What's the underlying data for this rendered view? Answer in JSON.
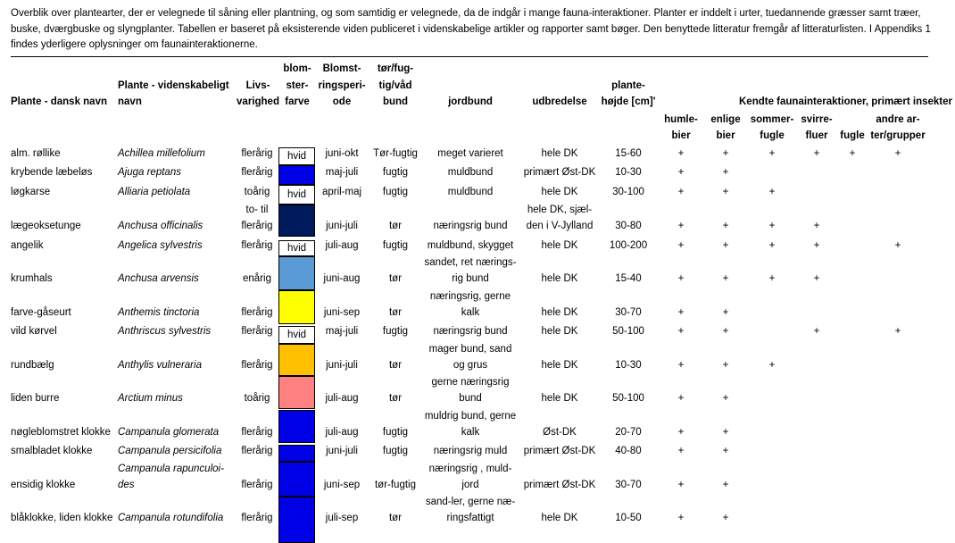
{
  "intro": "Overblik over plantearter, der er velegnede til såning eller plantning, og som samtidig er velegnede, da de indgår i mange fauna-interaktioner. Planter er inddelt i urter, tuedannende græsser samt træer, buske, dværgbuske og slyngplanter. Tabellen er baseret på eksisterende viden publiceret i videnskabelige artikler og rapporter samt bøger. Den benyttede litteratur fremgår af litteraturlisten. I Appendiks 1 findes yderligere oplysninger om faunainteraktionerne.",
  "headers": {
    "dansk": "Plante - dansk navn",
    "latin": [
      "Plante - videnskabeligt",
      "navn"
    ],
    "livs": [
      "Livs-",
      "varighed"
    ],
    "farve": [
      "blom-",
      "ster-",
      "farve"
    ],
    "blomst": [
      "Blomst-",
      "ringsperi-",
      "ode"
    ],
    "bund": [
      "tør/fug-",
      "tig/våd",
      "bund"
    ],
    "jordbund": "jordbund",
    "udbredelse": "udbredelse",
    "hojde": [
      "plante-",
      "højde [cm]'"
    ],
    "kendte": "Kendte faunainteraktioner, primært insekter",
    "fauna": [
      [
        "humle-",
        "bier"
      ],
      [
        "enlige",
        "bier"
      ],
      [
        "sommer-",
        "fugle"
      ],
      [
        "svirre-",
        "fluer"
      ],
      [
        "",
        "fugle"
      ],
      [
        "andre ar-",
        "ter/grupper"
      ]
    ]
  },
  "rows": [
    {
      "dansk": "alm. røllike",
      "latin": [
        "Achillea millefolium"
      ],
      "livs": [
        "flerårig"
      ],
      "color": "#ffffff",
      "colorLabel": "hvid",
      "blomst": "juni-okt",
      "bund": "Tør-fugtig",
      "jord": [
        "meget varieret"
      ],
      "udb": [
        "hele DK"
      ],
      "hojde": "15-60",
      "fauna": [
        "+",
        "+",
        "+",
        "+",
        "+",
        "+"
      ]
    },
    {
      "dansk": "krybende læbeløs",
      "latin": [
        "Ajuga reptans"
      ],
      "livs": [
        "flerårig"
      ],
      "color": "#0000e6",
      "colorLabel": "",
      "blomst": "maj-juli",
      "bund": "fugtig",
      "jord": [
        "muldbund"
      ],
      "udb": [
        "primært Øst-DK"
      ],
      "hojde": "10-30",
      "fauna": [
        "+",
        "+",
        "",
        "",
        "",
        ""
      ]
    },
    {
      "dansk": "løgkarse",
      "latin": [
        "Alliaria petiolata"
      ],
      "livs": [
        "toårig"
      ],
      "color": "#ffffff",
      "colorLabel": "hvid",
      "blomst": "april-maj",
      "bund": "fugtig",
      "jord": [
        "muldbund"
      ],
      "udb": [
        "hele DK"
      ],
      "hojde": "30-100",
      "fauna": [
        "+",
        "+",
        "+",
        "",
        "",
        ""
      ]
    },
    {
      "dansk": "lægeoksetunge",
      "latin": [
        "Anchusa officinalis"
      ],
      "livs": [
        "to- til",
        "flerårig"
      ],
      "color": "#001a5c",
      "colorLabel": "",
      "blomst": "juni-juli",
      "bund": "tør",
      "jord": [
        "næringsrig bund"
      ],
      "udb": [
        "hele DK, sjæl-",
        "den i V-Jylland"
      ],
      "hojde": "30-80",
      "fauna": [
        "+",
        "+",
        "+",
        "+",
        "",
        ""
      ]
    },
    {
      "dansk": "angelik",
      "latin": [
        "Angelica sylvestris"
      ],
      "livs": [
        "flerårig"
      ],
      "color": "#ffffff",
      "colorLabel": "hvid",
      "blomst": "juli-aug",
      "bund": "fugtig",
      "jord": [
        "muldbund, skygget"
      ],
      "udb": [
        "hele DK"
      ],
      "hojde": "100-200",
      "fauna": [
        "+",
        "+",
        "+",
        "+",
        "",
        "+"
      ]
    },
    {
      "dansk": "krumhals",
      "latin": [
        "Anchusa arvensis"
      ],
      "livs": [
        "enårig"
      ],
      "color": "#5b9bd5",
      "colorLabel": "",
      "blomst": "juni-aug",
      "bund": "tør",
      "jord": [
        "sandet, ret nærings-",
        "rig bund"
      ],
      "udb": [
        "hele DK"
      ],
      "hojde": "15-40",
      "fauna": [
        "+",
        "+",
        "+",
        "+",
        "",
        ""
      ]
    },
    {
      "dansk": "farve-gåseurt",
      "latin": [
        "Anthemis tinctoria"
      ],
      "livs": [
        "flerårig"
      ],
      "color": "#ffff00",
      "colorLabel": "",
      "blomst": "juni-sep",
      "bund": "tør",
      "jord": [
        "næringsrig, gerne",
        "kalk"
      ],
      "udb": [
        "hele DK"
      ],
      "hojde": "30-70",
      "fauna": [
        "+",
        "+",
        "",
        "",
        "",
        ""
      ]
    },
    {
      "dansk": "vild kørvel",
      "latin": [
        "Anthriscus sylvestris"
      ],
      "livs": [
        "flerårig"
      ],
      "color": "#ffffff",
      "colorLabel": "hvid",
      "blomst": "maj-juli",
      "bund": "fugtig",
      "jord": [
        "næringsrig bund"
      ],
      "udb": [
        "hele DK"
      ],
      "hojde": "50-100",
      "fauna": [
        "+",
        "+",
        "",
        "+",
        "",
        "+"
      ]
    },
    {
      "dansk": "rundbælg",
      "latin": [
        "Anthylis vulneraria"
      ],
      "livs": [
        "flerårig"
      ],
      "color": "#ffc000",
      "colorLabel": "",
      "blomst": "juni-juli",
      "bund": "tør",
      "jord": [
        "mager bund, sand",
        "og grus"
      ],
      "udb": [
        "hele DK"
      ],
      "hojde": "10-30",
      "fauna": [
        "+",
        "+",
        "+",
        "",
        "",
        ""
      ]
    },
    {
      "dansk": "liden burre",
      "latin": [
        "Arctium minus"
      ],
      "livs": [
        "toårig"
      ],
      "color": "#ff8080",
      "colorLabel": "",
      "blomst": "juli-aug",
      "bund": "tør",
      "jord": [
        "gerne næringsrig",
        "bund"
      ],
      "udb": [
        "hele DK"
      ],
      "hojde": "50-100",
      "fauna": [
        "+",
        "+",
        "",
        "",
        "",
        ""
      ]
    },
    {
      "dansk": "nøgleblomstret klokke",
      "latin": [
        "Campanula glomerata"
      ],
      "livs": [
        "flerårig"
      ],
      "color": "#0000e6",
      "colorLabel": "",
      "blomst": "juli-aug",
      "bund": "fugtig",
      "jord": [
        "muldrig bund, gerne",
        "kalk"
      ],
      "udb": [
        "Øst-DK"
      ],
      "hojde": "20-70",
      "fauna": [
        "+",
        "+",
        "",
        "",
        "",
        ""
      ]
    },
    {
      "dansk": "smalbladet klokke",
      "latin": [
        "Campanula persicifolia"
      ],
      "livs": [
        "flerårig"
      ],
      "color": "#0000e6",
      "colorLabel": "",
      "blomst": "juni-juli",
      "bund": "fugtig",
      "jord": [
        "næringsrig muld"
      ],
      "udb": [
        "primært Øst-DK"
      ],
      "hojde": "40-80",
      "fauna": [
        "+",
        "+",
        "",
        "",
        "",
        ""
      ]
    },
    {
      "dansk": "ensidig klokke",
      "latin": [
        "Campanula rapunculoi-",
        "des"
      ],
      "livs": [
        "flerårig"
      ],
      "color": "#0000e6",
      "colorLabel": "",
      "blomst": "juni-sep",
      "bund": "tør-fugtig",
      "jord": [
        "næringsrig , muld-",
        "jord"
      ],
      "udb": [
        "primært Øst-DK"
      ],
      "hojde": "30-70",
      "fauna": [
        "+",
        "+",
        "",
        "",
        "",
        ""
      ]
    },
    {
      "dansk": "blåklokke, liden klokke",
      "latin": [
        "Campanula rotundifolia"
      ],
      "livs": [
        "flerårig"
      ],
      "color": "#0000e6",
      "colorLabel": "",
      "blomst": "juli-sep",
      "bund": "tør",
      "jord": [
        "sand-ler, gerne næ-",
        "ringsfattigt"
      ],
      "udb": [
        "hele DK"
      ],
      "hojde": "10-50",
      "fauna": [
        "+",
        "+",
        "",
        "",
        "",
        ""
      ]
    }
  ]
}
